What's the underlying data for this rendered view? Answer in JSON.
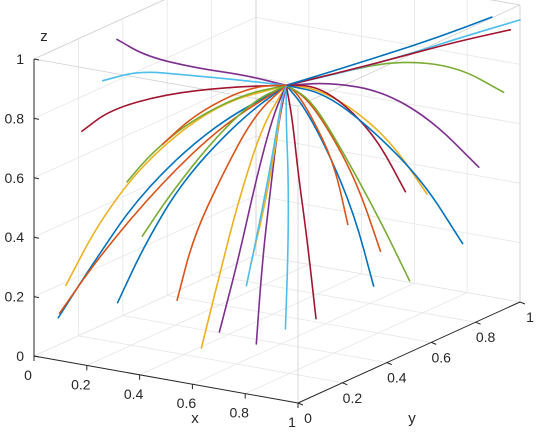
{
  "chart_data": {
    "type": "line",
    "projection": "3d",
    "xlabel": "x",
    "ylabel": "y",
    "zlabel": "z",
    "xlim": [
      0,
      1
    ],
    "ylim": [
      0,
      1
    ],
    "zlim": [
      0,
      1
    ],
    "x_ticks": [
      "0",
      "0.2",
      "0.4",
      "0.6",
      "0.8",
      "1"
    ],
    "y_ticks": [
      "0",
      "0.2",
      "0.4",
      "0.6",
      "0.8",
      "1"
    ],
    "z_ticks": [
      "0",
      "0.2",
      "0.4",
      "0.6",
      "0.8",
      "1"
    ],
    "grid": true,
    "box": true,
    "convergence_point": {
      "x": 0.72,
      "y": 0.28,
      "z": 0.93
    },
    "series_colors": [
      "#0072BD",
      "#D95319",
      "#EDB120",
      "#7E2F8E",
      "#77AC30",
      "#4DBEEE",
      "#A2142F"
    ],
    "series": [
      {
        "color": "#0072BD",
        "points": [
          [
            0.05,
            0.05,
            0.12
          ],
          [
            0.15,
            0.08,
            0.3
          ],
          [
            0.3,
            0.12,
            0.55
          ],
          [
            0.5,
            0.2,
            0.78
          ],
          [
            0.72,
            0.28,
            0.93
          ]
        ]
      },
      {
        "color": "#D95319",
        "points": [
          [
            0.08,
            0.02,
            0.15
          ],
          [
            0.2,
            0.06,
            0.35
          ],
          [
            0.38,
            0.12,
            0.6
          ],
          [
            0.55,
            0.2,
            0.8
          ],
          [
            0.72,
            0.28,
            0.93
          ]
        ]
      },
      {
        "color": "#EDB120",
        "points": [
          [
            0.02,
            0.12,
            0.2
          ],
          [
            0.12,
            0.15,
            0.42
          ],
          [
            0.28,
            0.18,
            0.65
          ],
          [
            0.5,
            0.23,
            0.85
          ],
          [
            0.72,
            0.28,
            0.93
          ]
        ]
      },
      {
        "color": "#7E2F8E",
        "points": [
          [
            0.02,
            0.35,
            0.95
          ],
          [
            0.15,
            0.33,
            0.92
          ],
          [
            0.35,
            0.31,
            0.92
          ],
          [
            0.55,
            0.3,
            0.93
          ],
          [
            0.72,
            0.28,
            0.93
          ]
        ]
      },
      {
        "color": "#77AC30",
        "points": [
          [
            0.1,
            0.3,
            0.5
          ],
          [
            0.2,
            0.3,
            0.62
          ],
          [
            0.35,
            0.3,
            0.75
          ],
          [
            0.55,
            0.29,
            0.87
          ],
          [
            0.72,
            0.28,
            0.93
          ]
        ]
      },
      {
        "color": "#4DBEEE",
        "points": [
          [
            0.05,
            0.25,
            0.85
          ],
          [
            0.18,
            0.26,
            0.9
          ],
          [
            0.35,
            0.27,
            0.91
          ],
          [
            0.55,
            0.28,
            0.92
          ],
          [
            0.72,
            0.28,
            0.93
          ]
        ]
      },
      {
        "color": "#A2142F",
        "points": [
          [
            0.03,
            0.18,
            0.7
          ],
          [
            0.12,
            0.2,
            0.78
          ],
          [
            0.3,
            0.23,
            0.85
          ],
          [
            0.52,
            0.26,
            0.9
          ],
          [
            0.72,
            0.28,
            0.93
          ]
        ]
      },
      {
        "color": "#0072BD",
        "points": [
          [
            0.3,
            0.02,
            0.22
          ],
          [
            0.35,
            0.08,
            0.4
          ],
          [
            0.45,
            0.14,
            0.62
          ],
          [
            0.6,
            0.22,
            0.82
          ],
          [
            0.72,
            0.28,
            0.93
          ]
        ]
      },
      {
        "color": "#D95319",
        "points": [
          [
            0.5,
            0.05,
            0.25
          ],
          [
            0.52,
            0.1,
            0.45
          ],
          [
            0.58,
            0.16,
            0.65
          ],
          [
            0.65,
            0.22,
            0.84
          ],
          [
            0.72,
            0.28,
            0.93
          ]
        ]
      },
      {
        "color": "#EDB120",
        "points": [
          [
            0.55,
            0.1,
            0.08
          ],
          [
            0.58,
            0.14,
            0.3
          ],
          [
            0.62,
            0.18,
            0.55
          ],
          [
            0.67,
            0.23,
            0.8
          ],
          [
            0.72,
            0.28,
            0.93
          ]
        ]
      },
      {
        "color": "#7E2F8E",
        "points": [
          [
            0.8,
            0.05,
            0.15
          ],
          [
            0.78,
            0.1,
            0.4
          ],
          [
            0.76,
            0.16,
            0.62
          ],
          [
            0.74,
            0.22,
            0.82
          ],
          [
            0.72,
            0.28,
            0.93
          ]
        ]
      },
      {
        "color": "#77AC30",
        "points": [
          [
            0.2,
            0.25,
            0.35
          ],
          [
            0.3,
            0.25,
            0.5
          ],
          [
            0.45,
            0.26,
            0.7
          ],
          [
            0.6,
            0.27,
            0.86
          ],
          [
            0.72,
            0.28,
            0.93
          ]
        ]
      },
      {
        "color": "#4DBEEE",
        "points": [
          [
            0.7,
            0.3,
            0.1
          ],
          [
            0.71,
            0.3,
            0.35
          ],
          [
            0.72,
            0.29,
            0.6
          ],
          [
            0.72,
            0.28,
            0.8
          ],
          [
            0.72,
            0.28,
            0.93
          ]
        ]
      },
      {
        "color": "#A2142F",
        "points": [
          [
            0.9,
            0.2,
            0.2
          ],
          [
            0.85,
            0.22,
            0.45
          ],
          [
            0.8,
            0.24,
            0.65
          ],
          [
            0.76,
            0.26,
            0.83
          ],
          [
            0.72,
            0.28,
            0.93
          ]
        ]
      },
      {
        "color": "#0072BD",
        "points": [
          [
            0.95,
            0.4,
            0.25
          ],
          [
            0.9,
            0.37,
            0.5
          ],
          [
            0.83,
            0.33,
            0.72
          ],
          [
            0.77,
            0.3,
            0.86
          ],
          [
            0.72,
            0.28,
            0.93
          ]
        ]
      },
      {
        "color": "#D95319",
        "points": [
          [
            0.85,
            0.55,
            0.3
          ],
          [
            0.82,
            0.48,
            0.55
          ],
          [
            0.78,
            0.4,
            0.75
          ],
          [
            0.75,
            0.33,
            0.88
          ],
          [
            0.72,
            0.28,
            0.93
          ]
        ]
      },
      {
        "color": "#EDB120",
        "points": [
          [
            0.9,
            0.7,
            0.45
          ],
          [
            0.85,
            0.6,
            0.65
          ],
          [
            0.8,
            0.48,
            0.8
          ],
          [
            0.76,
            0.36,
            0.9
          ],
          [
            0.72,
            0.28,
            0.93
          ]
        ]
      },
      {
        "color": "#7E2F8E",
        "points": [
          [
            0.97,
            0.85,
            0.5
          ],
          [
            0.92,
            0.7,
            0.7
          ],
          [
            0.86,
            0.55,
            0.84
          ],
          [
            0.79,
            0.4,
            0.91
          ],
          [
            0.72,
            0.28,
            0.93
          ]
        ]
      },
      {
        "color": "#77AC30",
        "points": [
          [
            0.98,
            0.95,
            0.72
          ],
          [
            0.93,
            0.8,
            0.85
          ],
          [
            0.86,
            0.62,
            0.92
          ],
          [
            0.79,
            0.45,
            0.93
          ],
          [
            0.72,
            0.28,
            0.93
          ]
        ]
      },
      {
        "color": "#4DBEEE",
        "points": [
          [
            1,
            1,
            0.95
          ],
          [
            0.95,
            0.82,
            0.95
          ],
          [
            0.88,
            0.62,
            0.94
          ],
          [
            0.8,
            0.45,
            0.93
          ],
          [
            0.72,
            0.28,
            0.93
          ]
        ]
      },
      {
        "color": "#A2142F",
        "points": [
          [
            0.98,
            0.98,
            0.92
          ],
          [
            0.92,
            0.8,
            0.93
          ],
          [
            0.85,
            0.6,
            0.93
          ],
          [
            0.78,
            0.42,
            0.93
          ],
          [
            0.72,
            0.28,
            0.93
          ]
        ]
      },
      {
        "color": "#0072BD",
        "points": [
          [
            0.96,
            0.92,
            0.98
          ],
          [
            0.9,
            0.75,
            0.96
          ],
          [
            0.84,
            0.58,
            0.95
          ],
          [
            0.78,
            0.42,
            0.94
          ],
          [
            0.72,
            0.28,
            0.93
          ]
        ]
      },
      {
        "color": "#D95319",
        "points": [
          [
            0.6,
            0.7,
            0.3
          ],
          [
            0.65,
            0.58,
            0.55
          ],
          [
            0.68,
            0.45,
            0.75
          ],
          [
            0.7,
            0.35,
            0.88
          ],
          [
            0.72,
            0.28,
            0.93
          ]
        ]
      },
      {
        "color": "#EDB120",
        "points": [
          [
            0.4,
            0.5,
            0.2
          ],
          [
            0.5,
            0.45,
            0.45
          ],
          [
            0.6,
            0.38,
            0.7
          ],
          [
            0.67,
            0.32,
            0.86
          ],
          [
            0.72,
            0.28,
            0.93
          ]
        ]
      },
      {
        "color": "#7E2F8E",
        "points": [
          [
            0.45,
            0.3,
            0.05
          ],
          [
            0.52,
            0.3,
            0.3
          ],
          [
            0.6,
            0.29,
            0.6
          ],
          [
            0.67,
            0.28,
            0.82
          ],
          [
            0.72,
            0.28,
            0.93
          ]
        ]
      },
      {
        "color": "#77AC30",
        "points": [
          [
            0.75,
            0.8,
            0.1
          ],
          [
            0.75,
            0.65,
            0.38
          ],
          [
            0.74,
            0.5,
            0.65
          ],
          [
            0.73,
            0.38,
            0.85
          ],
          [
            0.72,
            0.28,
            0.93
          ]
        ]
      },
      {
        "color": "#4DBEEE",
        "points": [
          [
            0.3,
            0.6,
            0.08
          ],
          [
            0.42,
            0.52,
            0.35
          ],
          [
            0.55,
            0.42,
            0.62
          ],
          [
            0.65,
            0.34,
            0.84
          ],
          [
            0.72,
            0.28,
            0.93
          ]
        ]
      },
      {
        "color": "#A2142F",
        "points": [
          [
            0.65,
            0.9,
            0.35
          ],
          [
            0.67,
            0.75,
            0.58
          ],
          [
            0.69,
            0.58,
            0.76
          ],
          [
            0.71,
            0.42,
            0.88
          ],
          [
            0.72,
            0.28,
            0.93
          ]
        ]
      },
      {
        "color": "#0072BD",
        "points": [
          [
            0.85,
            0.92,
            0.2
          ],
          [
            0.82,
            0.78,
            0.45
          ],
          [
            0.78,
            0.6,
            0.68
          ],
          [
            0.75,
            0.42,
            0.86
          ],
          [
            0.72,
            0.28,
            0.93
          ]
        ]
      },
      {
        "color": "#D95319",
        "points": [
          [
            0.15,
            0.4,
            0.6
          ],
          [
            0.28,
            0.38,
            0.72
          ],
          [
            0.45,
            0.35,
            0.83
          ],
          [
            0.6,
            0.31,
            0.9
          ],
          [
            0.72,
            0.28,
            0.93
          ]
        ]
      }
    ]
  }
}
